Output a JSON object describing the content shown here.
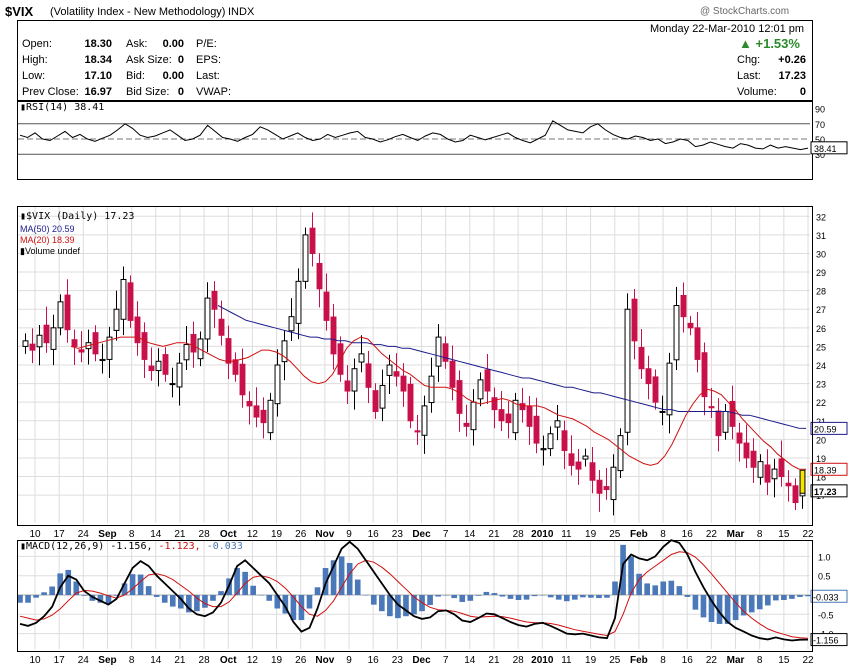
{
  "header": {
    "symbol": "$VIX",
    "name": "(Volatility Index - New Methodology)",
    "exchange": "INDX",
    "watermark": "@ StockCharts.com",
    "datetime": "Monday  22-Mar-2010  12:01 pm",
    "change_pct": "+1.53%",
    "up_color": "#2b8a2b"
  },
  "quote": {
    "open_label": "Open:",
    "open": "18.30",
    "high_label": "High:",
    "high": "18.34",
    "low_label": "Low:",
    "low": "17.10",
    "prev_label": "Prev Close:",
    "prev": "16.97",
    "ask_label": "Ask:",
    "ask": "0.00",
    "asksize_label": "Ask Size:",
    "asksize": "0",
    "bid_label": "Bid:",
    "bid": "0.00",
    "bidsize_label": "Bid Size:",
    "bidsize": "0",
    "pe_label": "P/E:",
    "eps_label": "EPS:",
    "last_label_l": "Last:",
    "vwap_label": "VWAP:",
    "chg_label": "Chg:",
    "chg": "+0.26",
    "last_label": "Last:",
    "last": "17.23",
    "volume_label": "Volume:",
    "volume": "0"
  },
  "chart_data": [
    {
      "type": "line",
      "title": "RSI(14) 38.41",
      "ylim": [
        0,
        100
      ],
      "y_ticks": [
        90,
        70,
        50,
        30
      ],
      "reference_lines": [
        70,
        30
      ],
      "midline": 50,
      "last_value": "38.41",
      "series": [
        {
          "name": "RSI(14)",
          "values": [
            55,
            52,
            58,
            50,
            48,
            54,
            60,
            52,
            56,
            50,
            47,
            51,
            55,
            62,
            70,
            64,
            55,
            52,
            54,
            58,
            62,
            55,
            48,
            50,
            55,
            68,
            60,
            52,
            50,
            47,
            52,
            56,
            66,
            62,
            56,
            50,
            54,
            58,
            52,
            48,
            50,
            56,
            52,
            55,
            58,
            60,
            52,
            50,
            46,
            49,
            53,
            56,
            52,
            48,
            54,
            58,
            56,
            50,
            46,
            48,
            55,
            52,
            49,
            52,
            55,
            58,
            52,
            48,
            45,
            50,
            55,
            74,
            68,
            62,
            60,
            58,
            66,
            70,
            62,
            56,
            52,
            50,
            54,
            52,
            48,
            50,
            44,
            46,
            50,
            48,
            40,
            42,
            46,
            43,
            40,
            38,
            44,
            42,
            38,
            37,
            42,
            38,
            40,
            38,
            36,
            38
          ]
        }
      ]
    },
    {
      "type": "candlestick",
      "title": "$VIX (Daily) 17.23",
      "ylim": [
        15.5,
        32.5
      ],
      "y_ticks": [
        32,
        31,
        30,
        29,
        28,
        27,
        26,
        25,
        24,
        23,
        22,
        21,
        20,
        19,
        18,
        17
      ],
      "legend": [
        "$VIX (Daily) 17.23",
        "MA(50) 20.59",
        "MA(20) 18.39",
        "Volume undef"
      ],
      "ma50_label": "20.59",
      "ma20_label": "18.39",
      "last_label": "17.23",
      "x_labels": [
        "10",
        "17",
        "24",
        "Sep",
        "8",
        "14",
        "21",
        "28",
        "Oct",
        "12",
        "19",
        "26",
        "Nov",
        "9",
        "16",
        "23",
        "Dec",
        "7",
        "14",
        "21",
        "28",
        "2010",
        "11",
        "19",
        "25",
        "Feb",
        "8",
        "16",
        "22",
        "Mar",
        "8",
        "15",
        "22"
      ],
      "close": [
        25.3,
        24.8,
        25.6,
        25.2,
        26.0,
        27.4,
        25.9,
        25.0,
        24.7,
        25.2,
        24.6,
        24.3,
        25.5,
        27.0,
        28.6,
        26.4,
        25.2,
        24.3,
        23.7,
        24.2,
        23.5,
        23.0,
        24.1,
        25.1,
        24.7,
        25.4,
        27.6,
        27.0,
        25.6,
        24.1,
        23.5,
        22.4,
        21.8,
        21.2,
        20.9,
        22.1,
        24.0,
        25.3,
        26.6,
        28.5,
        31.0,
        30.0,
        28.1,
        26.4,
        24.6,
        23.5,
        22.6,
        23.8,
        24.6,
        22.8,
        21.5,
        22.9,
        24.0,
        23.4,
        22.6,
        21.0,
        20.4,
        21.8,
        23.4,
        25.5,
        24.2,
        22.8,
        21.4,
        20.7,
        22.0,
        23.2,
        22.6,
        21.6,
        21.0,
        20.9,
        22.1,
        21.6,
        20.7,
        19.8,
        19.5,
        20.3,
        21.0,
        19.4,
        18.6,
        18.4,
        19.1,
        17.8,
        17.1,
        17.3,
        18.5,
        20.2,
        27.0,
        25.3,
        23.8,
        23.0,
        22.0,
        21.5,
        24.1,
        27.2,
        26.6,
        26.0,
        24.3,
        22.3,
        21.7,
        20.2,
        21.5,
        20.7,
        19.8,
        19.0,
        18.5,
        18.8,
        17.7,
        18.4,
        18.0,
        17.5,
        16.6,
        17.23
      ],
      "ma20": [
        25.0,
        24.9,
        25.0,
        25.1,
        25.2,
        25.3,
        25.4,
        25.5,
        25.5,
        25.5,
        25.4,
        25.2,
        25.1,
        25.0,
        25.1,
        25.2,
        25.2,
        25.1,
        24.9,
        24.7,
        24.5,
        24.3,
        24.2,
        24.2,
        24.3,
        24.4,
        24.6,
        24.8,
        24.8,
        24.7,
        24.5,
        24.2,
        23.8,
        23.4,
        23.1,
        23.0,
        23.1,
        23.5,
        24.2,
        24.9,
        25.3,
        25.5,
        25.4,
        25.0,
        24.6,
        24.3,
        24.0,
        23.7,
        23.5,
        23.2,
        22.9,
        22.8,
        22.8,
        22.8,
        22.7,
        22.5,
        22.2,
        22.0,
        21.9,
        22.0,
        22.1,
        22.2,
        22.1,
        21.9,
        21.8,
        21.8,
        21.8,
        21.7,
        21.5,
        21.3,
        21.2,
        21.1,
        20.9,
        20.7,
        20.4,
        20.2,
        20.0,
        19.7,
        19.4,
        19.1,
        18.9,
        18.7,
        18.6,
        18.7,
        19.1,
        19.7,
        20.5,
        21.3,
        21.9,
        22.4,
        22.7,
        22.6,
        22.4,
        22.0,
        21.6,
        21.1,
        20.7,
        20.3,
        19.9,
        19.6,
        19.2,
        18.9,
        18.6,
        18.4,
        18.39
      ],
      "ma50": [
        27.2,
        27.0,
        26.8,
        26.6,
        26.4,
        26.3,
        26.2,
        26.1,
        26.0,
        25.9,
        25.8,
        25.7,
        25.6,
        25.5,
        25.5,
        25.4,
        25.4,
        25.3,
        25.3,
        25.2,
        25.2,
        25.2,
        25.1,
        25.1,
        25.0,
        25.0,
        24.9,
        24.9,
        24.8,
        24.7,
        24.6,
        24.5,
        24.4,
        24.3,
        24.2,
        24.1,
        24.0,
        23.9,
        23.8,
        23.7,
        23.6,
        23.5,
        23.4,
        23.3,
        23.3,
        23.2,
        23.1,
        23.0,
        22.9,
        22.8,
        22.8,
        22.7,
        22.6,
        22.5,
        22.5,
        22.4,
        22.3,
        22.2,
        22.1,
        22.0,
        21.9,
        21.8,
        21.7,
        21.6,
        21.6,
        21.5,
        21.5,
        21.5,
        21.5,
        21.5,
        21.5,
        21.5,
        21.5,
        21.4,
        21.3,
        21.3,
        21.2,
        21.1,
        21.0,
        20.9,
        20.8,
        20.7,
        20.6,
        20.59
      ]
    },
    {
      "type": "line",
      "title": "MACD(12,26,9) -1.156, -1.123, -0.033",
      "macd_label": "MACD(12,26,9)",
      "macd_value": "-1.156,",
      "signal_value": "-1.123,",
      "hist_value": "-0.033",
      "ylim": [
        -1.4,
        1.4
      ],
      "y_ticks": [
        "1.0",
        "0.5",
        "-0.5",
        "-1.0"
      ],
      "hist_label": "-0.033",
      "last_label": "-1.156",
      "series": [
        {
          "name": "MACD",
          "values": [
            -0.75,
            -0.8,
            -0.72,
            -0.55,
            -0.3,
            0.2,
            0.5,
            0.4,
            0.1,
            -0.05,
            -0.15,
            -0.25,
            -0.1,
            0.3,
            0.7,
            0.88,
            0.75,
            0.5,
            0.3,
            0.1,
            -0.1,
            -0.35,
            -0.5,
            -0.55,
            -0.45,
            -0.2,
            0.25,
            0.75,
            0.9,
            0.7,
            0.5,
            0.3,
            0.0,
            -0.3,
            -0.7,
            -0.95,
            -0.85,
            -0.35,
            0.3,
            0.75,
            1.2,
            1.38,
            1.2,
            0.9,
            0.6,
            0.3,
            0.0,
            -0.25,
            -0.4,
            -0.55,
            -0.62,
            -0.58,
            -0.42,
            -0.4,
            -0.5,
            -0.66,
            -0.7,
            -0.6,
            -0.48,
            -0.5,
            -0.6,
            -0.7,
            -0.78,
            -0.82,
            -0.75,
            -0.72,
            -0.8,
            -0.9,
            -1.0,
            -1.02,
            -1.0,
            -1.05,
            -1.1,
            -1.12,
            -0.6,
            0.8,
            1.05,
            0.95,
            0.9,
            1.0,
            1.25,
            1.42,
            1.35,
            1.05,
            0.6,
            0.2,
            -0.15,
            -0.45,
            -0.7,
            -0.85,
            -0.95,
            -1.05,
            -1.12,
            -1.15,
            -1.1,
            -1.15,
            -1.18,
            -1.16,
            -1.156
          ]
        },
        {
          "name": "Signal",
          "values": [
            -0.55,
            -0.6,
            -0.65,
            -0.62,
            -0.52,
            -0.36,
            -0.15,
            0.05,
            0.12,
            0.1,
            0.05,
            -0.02,
            -0.08,
            0.0,
            0.16,
            0.35,
            0.52,
            0.55,
            0.5,
            0.4,
            0.25,
            0.1,
            -0.08,
            -0.22,
            -0.3,
            -0.3,
            -0.18,
            0.05,
            0.3,
            0.46,
            0.5,
            0.45,
            0.35,
            0.18,
            -0.05,
            -0.3,
            -0.5,
            -0.55,
            -0.4,
            -0.15,
            0.2,
            0.55,
            0.8,
            0.9,
            0.85,
            0.72,
            0.55,
            0.35,
            0.15,
            -0.05,
            -0.2,
            -0.32,
            -0.38,
            -0.4,
            -0.42,
            -0.48,
            -0.55,
            -0.58,
            -0.56,
            -0.55,
            -0.56,
            -0.6,
            -0.65,
            -0.7,
            -0.72,
            -0.72,
            -0.74,
            -0.78,
            -0.84,
            -0.9,
            -0.94,
            -0.98,
            -1.02,
            -1.05,
            -0.95,
            -0.5,
            0.05,
            0.4,
            0.6,
            0.75,
            0.9,
            1.05,
            1.12,
            1.1,
            0.98,
            0.78,
            0.55,
            0.3,
            0.05,
            -0.2,
            -0.42,
            -0.6,
            -0.75,
            -0.88,
            -0.96,
            -1.02,
            -1.08,
            -1.11,
            -1.123
          ]
        }
      ],
      "x_labels": [
        "10",
        "17",
        "24",
        "Sep",
        "8",
        "14",
        "21",
        "28",
        "Oct",
        "12",
        "19",
        "26",
        "Nov",
        "9",
        "16",
        "23",
        "Dec",
        "7",
        "14",
        "21",
        "28",
        "2010",
        "11",
        "19",
        "25",
        "Feb",
        "8",
        "16",
        "22",
        "Mar",
        "8",
        "15",
        "22"
      ]
    }
  ],
  "colors": {
    "ma50": "#1a1a8c",
    "ma20": "#d01010",
    "down": "#c8104a",
    "up": "#000000",
    "hist": "#4a78b8",
    "grid": "#dddddd"
  }
}
